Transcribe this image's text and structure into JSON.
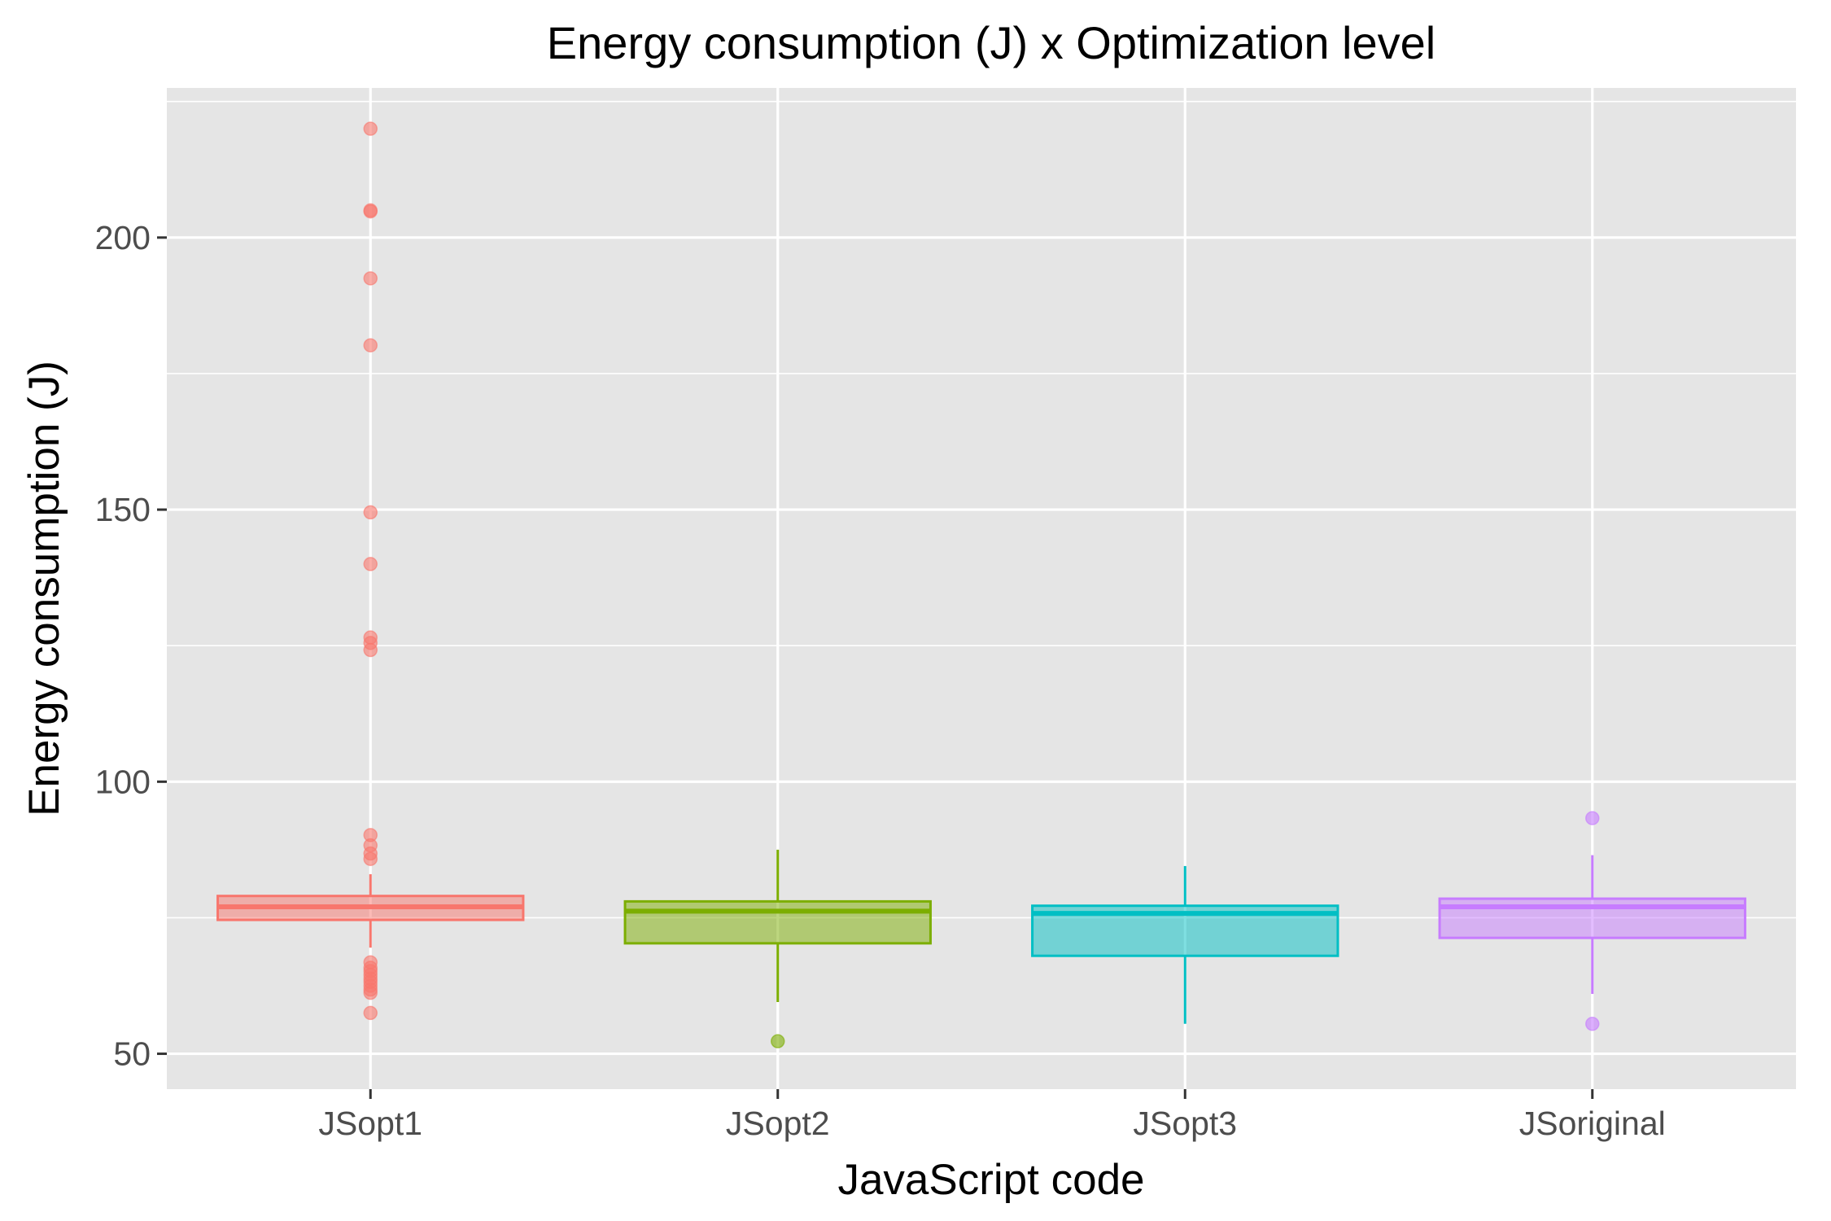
{
  "chart_data": {
    "type": "boxplot",
    "title": "Energy consumption (J) x Optimization level",
    "xlabel": "JavaScript code",
    "ylabel": "Energy consumption (J)",
    "ylim": [
      43.5,
      227.5
    ],
    "yticks": [
      50,
      100,
      150,
      200
    ],
    "grid": true,
    "legend": "none",
    "categories": [
      "JSopt1",
      "JSopt2",
      "JSopt3",
      "JSoriginal"
    ],
    "series": [
      {
        "category": "JSopt1",
        "color": "#F8766D",
        "whisker_low": 69.5,
        "q1": 74.6,
        "median": 77.0,
        "q3": 79.0,
        "whisker_high": 83.0,
        "outliers": [
          220,
          205,
          204.8,
          192.5,
          180.2,
          149.5,
          140,
          126.5,
          125.5,
          124.2,
          90.2,
          88.3,
          86.8,
          85.8,
          66.8,
          65.8,
          65.2,
          64.5,
          63.8,
          63.2,
          62.5,
          61.8,
          61.2,
          57.5
        ]
      },
      {
        "category": "JSopt2",
        "color": "#7CAE00",
        "whisker_low": 59.5,
        "q1": 70.3,
        "median": 76.2,
        "q3": 78.0,
        "whisker_high": 87.5,
        "outliers": [
          52.3
        ]
      },
      {
        "category": "JSopt3",
        "color": "#00BFC4",
        "whisker_low": 55.5,
        "q1": 68.0,
        "median": 75.8,
        "q3": 77.2,
        "whisker_high": 84.5,
        "outliers": []
      },
      {
        "category": "JSoriginal",
        "color": "#C77CFF",
        "whisker_low": 61.0,
        "q1": 71.3,
        "median": 77.0,
        "q3": 78.5,
        "whisker_high": 86.5,
        "outliers": [
          93.3,
          55.5
        ]
      }
    ]
  }
}
